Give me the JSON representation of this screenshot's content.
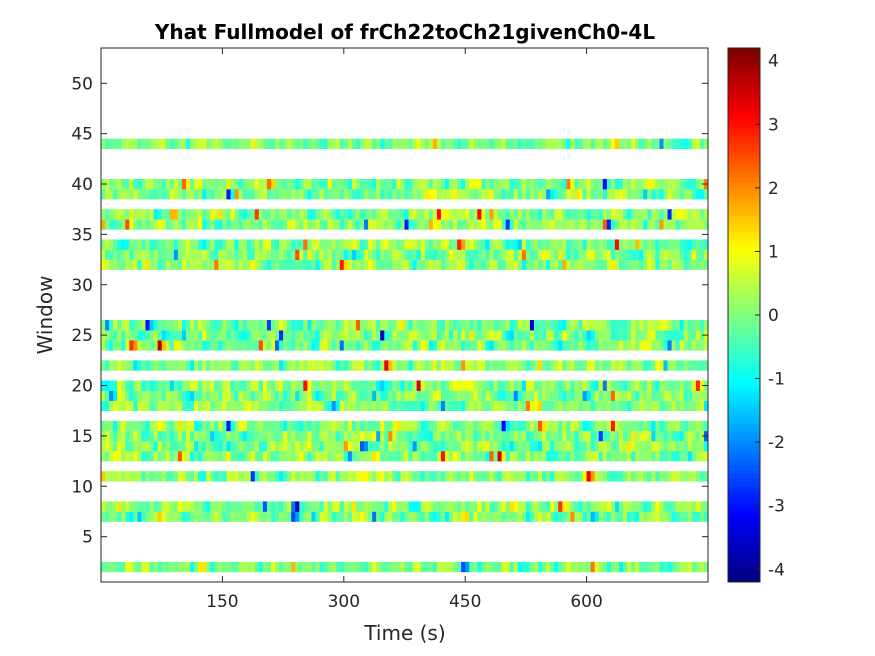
{
  "chart_data": {
    "type": "heatmap",
    "title": "Yhat Fullmodel of frCh22toCh21givenCh0-4L",
    "xlabel": "Time (s)",
    "ylabel": "Window",
    "xlim": [
      0,
      750
    ],
    "ylim": [
      0.5,
      53.5
    ],
    "xticks": [
      150,
      300,
      450,
      600
    ],
    "yticks": [
      5,
      10,
      15,
      20,
      25,
      30,
      35,
      40,
      45,
      50
    ],
    "colormap": "jet",
    "clim": [
      -4.2,
      4.2
    ],
    "colorbar_ticks": [
      -4,
      -3,
      -2,
      -1,
      0,
      1,
      2,
      3,
      4
    ],
    "filled_windows": [
      2,
      7,
      8,
      11,
      13,
      14,
      15,
      16,
      18,
      19,
      20,
      22,
      24,
      25,
      26,
      32,
      33,
      34,
      36,
      37,
      39,
      40,
      44
    ],
    "empty_windows_note": "",
    "values_note": ""
  }
}
